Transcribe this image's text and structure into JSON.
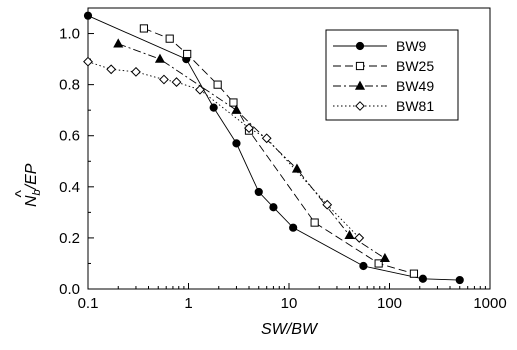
{
  "chart_data": {
    "type": "line",
    "xlabel": "SW/BW",
    "ylabel": {
      "main": "N",
      "sub": "b",
      "hat": "^",
      "tail": "/EP"
    },
    "x_scale": "log",
    "xlim": [
      0.1,
      1000
    ],
    "ylim": [
      0,
      1.1
    ],
    "x_ticks": [
      0.1,
      1,
      10,
      100,
      1000
    ],
    "x_tick_labels": [
      "0.1",
      "1",
      "10",
      "100",
      "1000"
    ],
    "y_ticks": [
      0.0,
      0.2,
      0.4,
      0.6,
      0.8,
      1.0
    ],
    "y_tick_labels": [
      "0.0",
      "0.2",
      "0.4",
      "0.6",
      "0.8",
      "1.0"
    ],
    "grid": false,
    "legend_position": "top-right",
    "series": [
      {
        "name": "BW9",
        "marker": "filled-circle",
        "line_style": "solid",
        "x": [
          0.1,
          0.95,
          1.78,
          3.0,
          5.0,
          7.0,
          11.0,
          55.0,
          215.0,
          500.0
        ],
        "y": [
          1.07,
          0.9,
          0.71,
          0.57,
          0.38,
          0.32,
          0.24,
          0.09,
          0.04,
          0.035
        ]
      },
      {
        "name": "BW25",
        "marker": "open-square",
        "line_style": "dashed",
        "x": [
          0.36,
          0.65,
          0.97,
          1.95,
          2.8,
          4.0,
          18.0,
          78.0,
          175.0
        ],
        "y": [
          1.02,
          0.98,
          0.92,
          0.8,
          0.73,
          0.62,
          0.26,
          0.1,
          0.06
        ]
      },
      {
        "name": "BW49",
        "marker": "filled-triangle",
        "line_style": "dash-dot",
        "x": [
          0.2,
          0.52,
          3.0,
          12.0,
          40.0,
          90.0
        ],
        "y": [
          0.96,
          0.9,
          0.7,
          0.47,
          0.21,
          0.12
        ]
      },
      {
        "name": "BW81",
        "marker": "open-diamond",
        "line_style": "dotted",
        "x": [
          0.1,
          0.17,
          0.3,
          0.57,
          0.76,
          1.3,
          4.0,
          6.0,
          24.0,
          50.0
        ],
        "y": [
          0.89,
          0.86,
          0.85,
          0.82,
          0.81,
          0.78,
          0.63,
          0.59,
          0.33,
          0.2
        ]
      }
    ]
  }
}
